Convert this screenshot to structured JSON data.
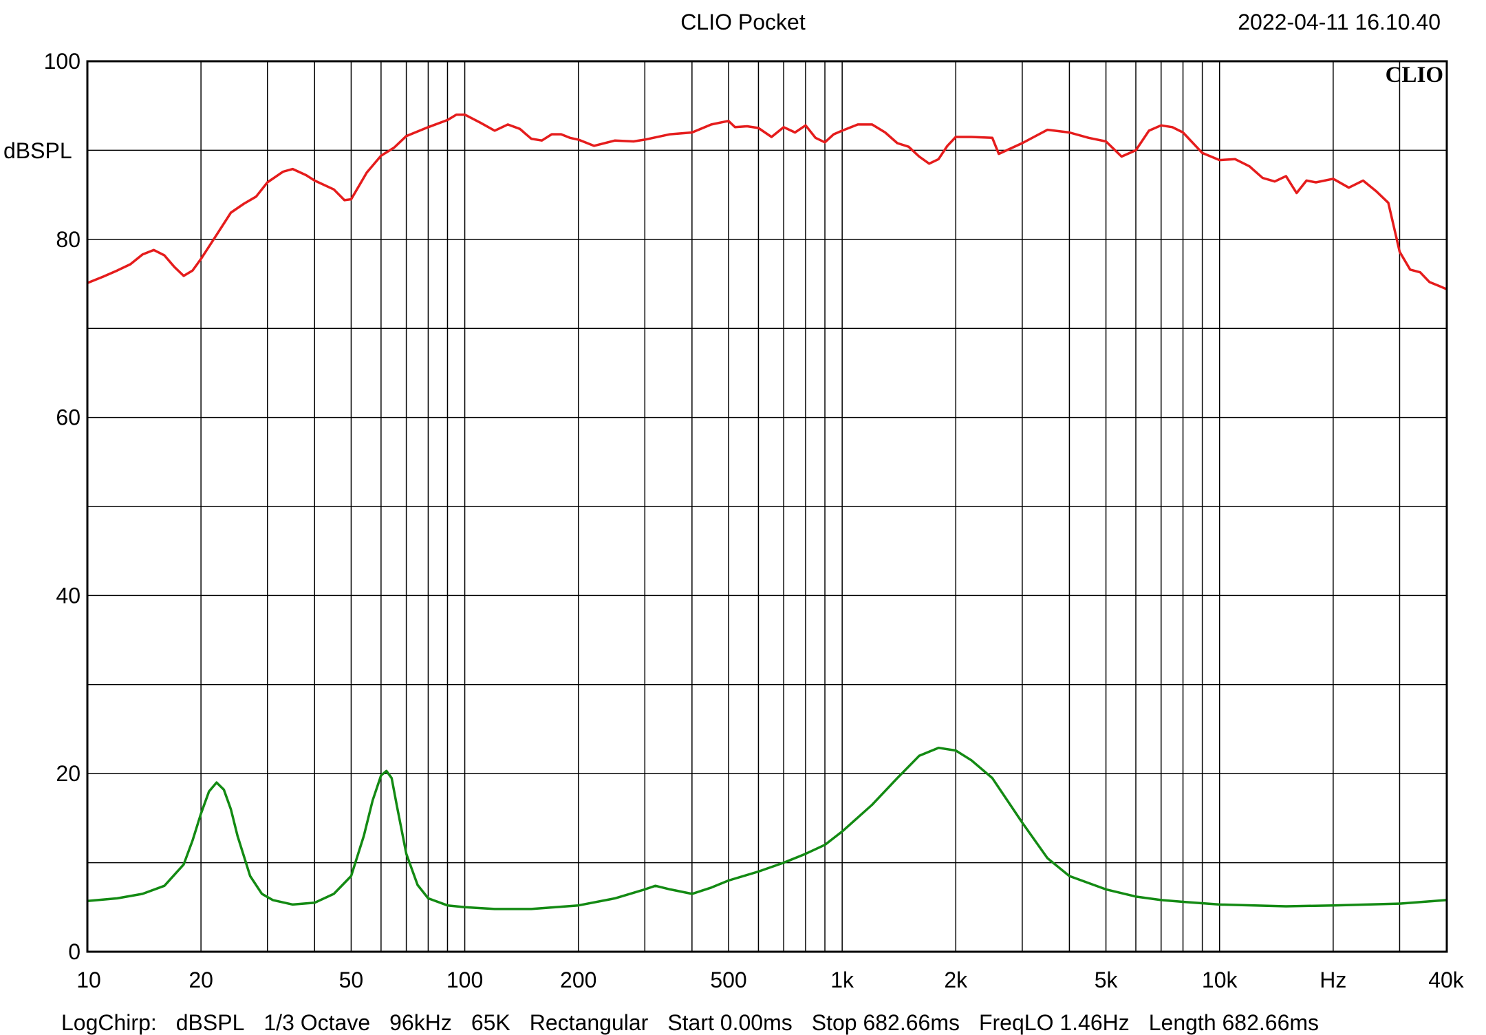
{
  "header": {
    "title": "CLIO Pocket",
    "timestamp": "2022-04-11 16.10.40"
  },
  "logo_text": "CLIO",
  "footer": {
    "items": [
      "LogChirp:",
      "dBSPL",
      "1/3 Octave",
      "96kHz",
      "65K",
      "Rectangular",
      "Start 0.00ms",
      "Stop 682.66ms",
      "FreqLO 1.46Hz",
      "Length 682.66ms"
    ]
  },
  "colors": {
    "series1": "#e51c1c",
    "series2": "#138a13",
    "grid": "#000000"
  },
  "chart_data": {
    "type": "line",
    "title": "CLIO Pocket",
    "xlabel": "Hz",
    "ylabel": "dBSPL",
    "xscale": "log",
    "xlim": [
      10,
      40000
    ],
    "ylim": [
      0,
      100
    ],
    "grid": true,
    "x_tick_labels": [
      {
        "value": 10,
        "label": "10"
      },
      {
        "value": 20,
        "label": "20"
      },
      {
        "value": 50,
        "label": "50"
      },
      {
        "value": 100,
        "label": "100"
      },
      {
        "value": 200,
        "label": "200"
      },
      {
        "value": 500,
        "label": "500"
      },
      {
        "value": 1000,
        "label": "1k"
      },
      {
        "value": 2000,
        "label": "2k"
      },
      {
        "value": 5000,
        "label": "5k"
      },
      {
        "value": 10000,
        "label": "10k"
      },
      {
        "value": 20000,
        "label": "Hz"
      },
      {
        "value": 40000,
        "label": "40k"
      }
    ],
    "y_tick_labels": [
      {
        "value": 0,
        "label": "0"
      },
      {
        "value": 20,
        "label": "20"
      },
      {
        "value": 40,
        "label": "40"
      },
      {
        "value": 60,
        "label": "60"
      },
      {
        "value": 80,
        "label": "80"
      },
      {
        "value": 100,
        "label": "100"
      }
    ],
    "y_gridlines": [
      0,
      10,
      20,
      30,
      40,
      50,
      60,
      70,
      80,
      90,
      100
    ],
    "x_gridlines": [
      10,
      20,
      30,
      40,
      50,
      60,
      70,
      80,
      90,
      100,
      200,
      300,
      400,
      500,
      600,
      700,
      800,
      900,
      1000,
      2000,
      3000,
      4000,
      5000,
      6000,
      7000,
      8000,
      9000,
      10000,
      20000,
      30000,
      40000
    ],
    "series": [
      {
        "color": "#e51c1c",
        "points": [
          [
            10,
            75.1
          ],
          [
            11,
            75.8
          ],
          [
            12,
            76.5
          ],
          [
            13,
            77.2
          ],
          [
            14,
            78.3
          ],
          [
            15,
            78.8
          ],
          [
            16,
            78.2
          ],
          [
            17,
            76.9
          ],
          [
            18,
            75.9
          ],
          [
            19,
            76.5
          ],
          [
            20,
            77.8
          ],
          [
            22,
            80.5
          ],
          [
            24,
            83.0
          ],
          [
            26,
            84.0
          ],
          [
            28,
            84.8
          ],
          [
            30,
            86.4
          ],
          [
            33,
            87.6
          ],
          [
            35,
            87.9
          ],
          [
            38,
            87.2
          ],
          [
            40,
            86.6
          ],
          [
            45,
            85.6
          ],
          [
            48,
            84.4
          ],
          [
            50,
            84.5
          ],
          [
            55,
            87.5
          ],
          [
            60,
            89.4
          ],
          [
            65,
            90.3
          ],
          [
            70,
            91.6
          ],
          [
            80,
            92.6
          ],
          [
            90,
            93.4
          ],
          [
            95,
            94.0
          ],
          [
            100,
            94.0
          ],
          [
            110,
            93.1
          ],
          [
            120,
            92.2
          ],
          [
            130,
            92.9
          ],
          [
            140,
            92.4
          ],
          [
            150,
            91.3
          ],
          [
            160,
            91.1
          ],
          [
            170,
            91.8
          ],
          [
            180,
            91.8
          ],
          [
            190,
            91.4
          ],
          [
            200,
            91.2
          ],
          [
            220,
            90.5
          ],
          [
            250,
            91.1
          ],
          [
            280,
            91.0
          ],
          [
            300,
            91.2
          ],
          [
            350,
            91.8
          ],
          [
            400,
            92.0
          ],
          [
            450,
            92.9
          ],
          [
            500,
            93.3
          ],
          [
            520,
            92.6
          ],
          [
            560,
            92.7
          ],
          [
            600,
            92.5
          ],
          [
            650,
            91.5
          ],
          [
            700,
            92.6
          ],
          [
            750,
            92.0
          ],
          [
            800,
            92.8
          ],
          [
            850,
            91.4
          ],
          [
            900,
            90.9
          ],
          [
            950,
            91.8
          ],
          [
            1000,
            92.2
          ],
          [
            1100,
            92.9
          ],
          [
            1200,
            92.9
          ],
          [
            1300,
            92.0
          ],
          [
            1400,
            90.8
          ],
          [
            1500,
            90.4
          ],
          [
            1600,
            89.3
          ],
          [
            1700,
            88.5
          ],
          [
            1800,
            89.0
          ],
          [
            1900,
            90.5
          ],
          [
            2000,
            91.5
          ],
          [
            2200,
            91.5
          ],
          [
            2500,
            91.4
          ],
          [
            2600,
            89.6
          ],
          [
            3000,
            90.8
          ],
          [
            3500,
            92.3
          ],
          [
            4000,
            92.0
          ],
          [
            4500,
            91.4
          ],
          [
            5000,
            91.0
          ],
          [
            5500,
            89.3
          ],
          [
            6000,
            90.0
          ],
          [
            6500,
            92.2
          ],
          [
            7000,
            92.8
          ],
          [
            7500,
            92.6
          ],
          [
            8000,
            92.0
          ],
          [
            9000,
            89.7
          ],
          [
            10000,
            88.9
          ],
          [
            11000,
            89.0
          ],
          [
            12000,
            88.2
          ],
          [
            13000,
            86.9
          ],
          [
            14000,
            86.5
          ],
          [
            15000,
            87.1
          ],
          [
            16000,
            85.2
          ],
          [
            17000,
            86.6
          ],
          [
            18000,
            86.4
          ],
          [
            20000,
            86.8
          ],
          [
            22000,
            85.8
          ],
          [
            24000,
            86.6
          ],
          [
            26000,
            85.4
          ],
          [
            28000,
            84.1
          ],
          [
            30000,
            78.6
          ],
          [
            32000,
            76.6
          ],
          [
            34000,
            76.3
          ],
          [
            36000,
            75.2
          ],
          [
            38000,
            74.8
          ],
          [
            40000,
            74.4
          ]
        ]
      },
      {
        "color": "#138a13",
        "points": [
          [
            10,
            5.7
          ],
          [
            12,
            6.0
          ],
          [
            14,
            6.5
          ],
          [
            16,
            7.4
          ],
          [
            18,
            9.8
          ],
          [
            19,
            12.5
          ],
          [
            20,
            15.5
          ],
          [
            21,
            18.0
          ],
          [
            22,
            19.0
          ],
          [
            23,
            18.2
          ],
          [
            24,
            16.0
          ],
          [
            25,
            13.0
          ],
          [
            27,
            8.5
          ],
          [
            29,
            6.5
          ],
          [
            31,
            5.8
          ],
          [
            35,
            5.3
          ],
          [
            40,
            5.5
          ],
          [
            45,
            6.5
          ],
          [
            50,
            8.5
          ],
          [
            54,
            13.0
          ],
          [
            57,
            17.0
          ],
          [
            60,
            19.8
          ],
          [
            62,
            20.3
          ],
          [
            64,
            19.5
          ],
          [
            66,
            16.5
          ],
          [
            70,
            11.0
          ],
          [
            75,
            7.5
          ],
          [
            80,
            6.0
          ],
          [
            90,
            5.2
          ],
          [
            100,
            5.0
          ],
          [
            120,
            4.8
          ],
          [
            150,
            4.8
          ],
          [
            200,
            5.2
          ],
          [
            250,
            6.0
          ],
          [
            300,
            7.0
          ],
          [
            320,
            7.4
          ],
          [
            350,
            7.0
          ],
          [
            400,
            6.5
          ],
          [
            450,
            7.2
          ],
          [
            500,
            8.0
          ],
          [
            600,
            9.0
          ],
          [
            700,
            10.0
          ],
          [
            800,
            11.0
          ],
          [
            900,
            12.0
          ],
          [
            1000,
            13.5
          ],
          [
            1200,
            16.5
          ],
          [
            1400,
            19.5
          ],
          [
            1600,
            22.0
          ],
          [
            1800,
            22.9
          ],
          [
            2000,
            22.6
          ],
          [
            2200,
            21.5
          ],
          [
            2500,
            19.5
          ],
          [
            3000,
            14.5
          ],
          [
            3500,
            10.5
          ],
          [
            4000,
            8.5
          ],
          [
            5000,
            7.0
          ],
          [
            6000,
            6.2
          ],
          [
            7000,
            5.8
          ],
          [
            8000,
            5.6
          ],
          [
            10000,
            5.3
          ],
          [
            15000,
            5.1
          ],
          [
            20000,
            5.2
          ],
          [
            30000,
            5.4
          ],
          [
            40000,
            5.8
          ]
        ]
      }
    ]
  }
}
